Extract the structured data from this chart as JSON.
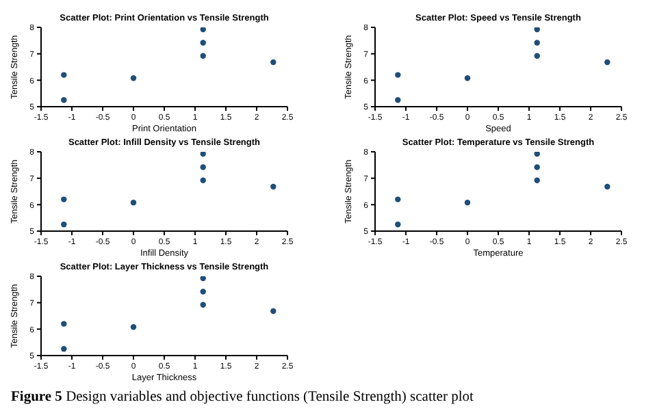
{
  "chart_data": [
    {
      "type": "scatter",
      "title": "Scatter Plot: Print Orientation vs Tensile Strength",
      "xlabel": "Print Orientation",
      "ylabel": "Tensile Strength",
      "x": [
        -1.13,
        -1.13,
        0,
        1.13,
        1.13,
        1.13,
        2.27
      ],
      "values": [
        6.2,
        5.25,
        6.08,
        7.92,
        7.42,
        6.92,
        6.68
      ],
      "color": "#1f4e79",
      "marker": "circle",
      "xlim": [
        -1.5,
        2.5
      ],
      "xticks": [
        -1.5,
        -1,
        -0.5,
        0,
        0.5,
        1,
        1.5,
        2,
        2.5
      ],
      "ylim": [
        5,
        8
      ],
      "yticks": [
        5,
        6,
        7,
        8
      ]
    },
    {
      "type": "scatter",
      "title": "Scatter Plot: Speed vs Tensile Strength",
      "xlabel": "Speed",
      "ylabel": "Tensile Strength",
      "x": [
        -1.13,
        -1.13,
        0,
        1.13,
        1.13,
        1.13,
        2.27
      ],
      "values": [
        6.2,
        5.25,
        6.08,
        7.92,
        7.42,
        6.92,
        6.68
      ],
      "color": "#1f4e79",
      "marker": "circle",
      "xlim": [
        -1.5,
        2.5
      ],
      "xticks": [
        -1.5,
        -1,
        -0.5,
        0,
        0.5,
        1,
        1.5,
        2,
        2.5
      ],
      "ylim": [
        5,
        8
      ],
      "yticks": [
        5,
        6,
        7,
        8
      ]
    },
    {
      "type": "scatter",
      "title": "Scatter Plot: Infill Density vs Tensile Strength",
      "xlabel": "Infill Density",
      "ylabel": "Tensile Strength",
      "x": [
        -1.13,
        -1.13,
        0,
        1.13,
        1.13,
        1.13,
        2.27
      ],
      "values": [
        6.2,
        5.25,
        6.08,
        7.92,
        7.42,
        6.92,
        6.68
      ],
      "color": "#1f4e79",
      "marker": "circle",
      "xlim": [
        -1.5,
        2.5
      ],
      "xticks": [
        -1.5,
        -1,
        -0.5,
        0,
        0.5,
        1,
        1.5,
        2,
        2.5
      ],
      "ylim": [
        5,
        8
      ],
      "yticks": [
        5,
        6,
        7,
        8
      ]
    },
    {
      "type": "scatter",
      "title": "Scatter Plot: Temperature vs Tensile Strength",
      "xlabel": "Temperature",
      "ylabel": "Tensile Strength",
      "x": [
        -1.13,
        -1.13,
        0,
        1.13,
        1.13,
        1.13,
        2.27
      ],
      "values": [
        6.2,
        5.25,
        6.08,
        7.92,
        7.42,
        6.92,
        6.68
      ],
      "color": "#1f4e79",
      "marker": "circle",
      "xlim": [
        -1.5,
        2.5
      ],
      "xticks": [
        -1.5,
        -1,
        -0.5,
        0,
        0.5,
        1,
        1.5,
        2,
        2.5
      ],
      "ylim": [
        5,
        8
      ],
      "yticks": [
        5,
        6,
        7,
        8
      ]
    },
    {
      "type": "scatter",
      "title": "Scatter Plot: Layer Thickness vs Tensile Strength",
      "xlabel": "Layer Thickness",
      "ylabel": "Tensile Strength",
      "x": [
        -1.13,
        -1.13,
        0,
        1.13,
        1.13,
        1.13,
        2.27
      ],
      "values": [
        6.2,
        5.25,
        6.08,
        7.92,
        7.42,
        6.92,
        6.68
      ],
      "color": "#1f4e79",
      "marker": "circle",
      "xlim": [
        -1.5,
        2.5
      ],
      "xticks": [
        -1.5,
        -1,
        -0.5,
        0,
        0.5,
        1,
        1.5,
        2,
        2.5
      ],
      "ylim": [
        5,
        8
      ],
      "yticks": [
        5,
        6,
        7,
        8
      ],
      "annotations": [
        "Figure 5 Design variables and objective functions (Tensile Strength) scatter plot"
      ]
    }
  ]
}
